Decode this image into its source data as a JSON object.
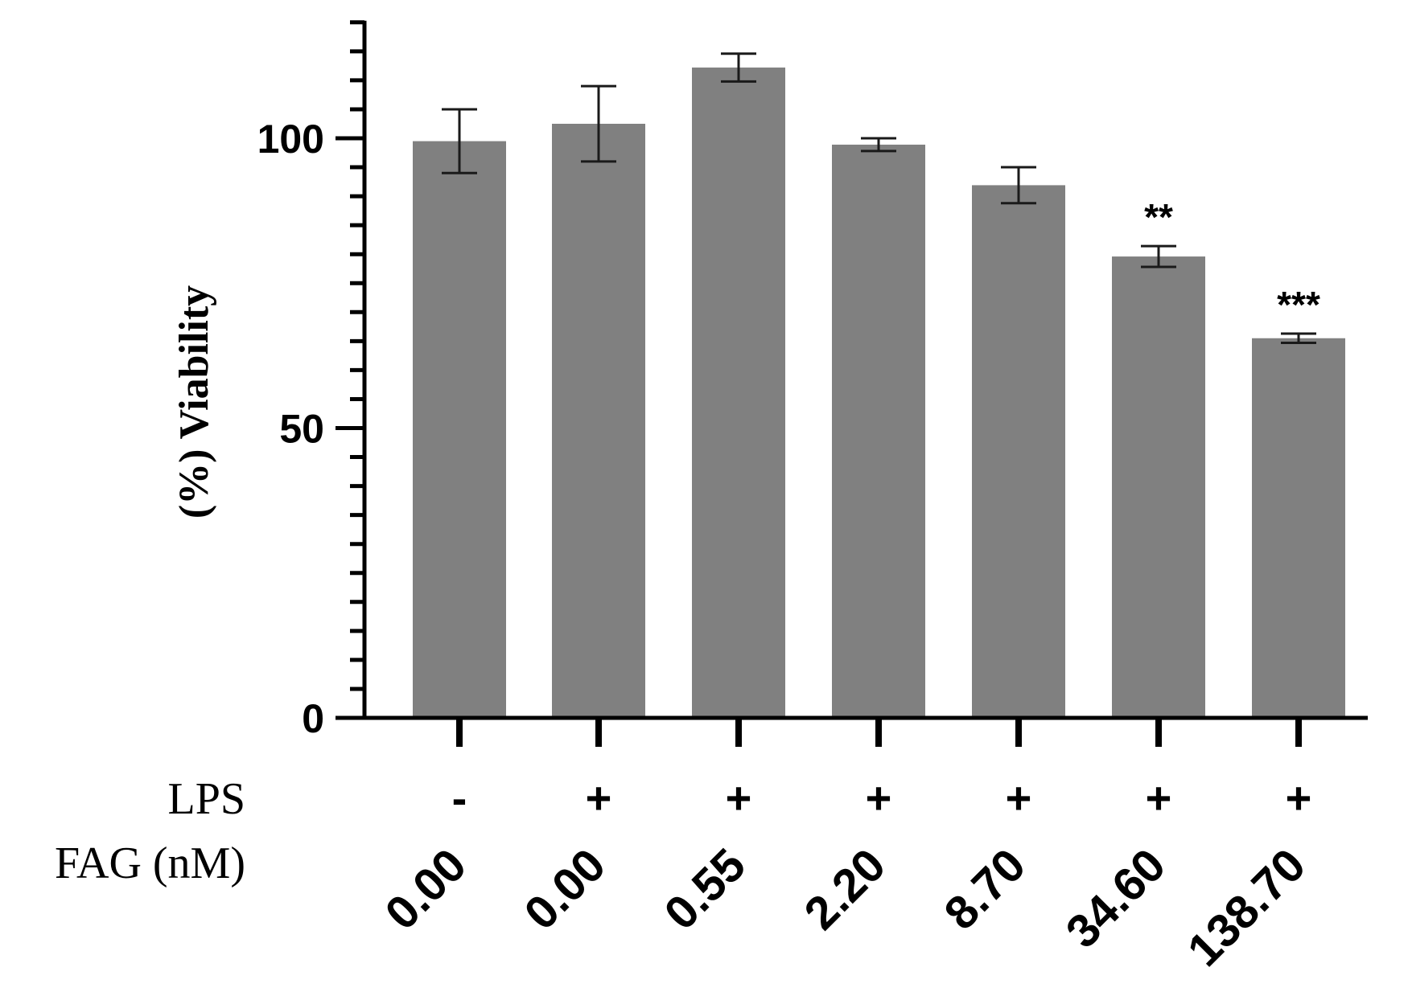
{
  "chart_data": {
    "type": "bar",
    "title": "",
    "xlabel": "",
    "ylabel": "(%) Viability",
    "ylim": [
      0,
      120
    ],
    "yticks": [
      0,
      50,
      100
    ],
    "minor_tick_step": 5,
    "grid": false,
    "legend": "none",
    "bar_color": "#808080",
    "error_color": "#1a1a1a",
    "axis_color": "#000000",
    "categories": [
      "0.00",
      "0.00",
      "0.55",
      "2.20",
      "8.70",
      "34.60",
      "138.70"
    ],
    "values": [
      99.5,
      102.5,
      112.2,
      98.9,
      91.9,
      79.6,
      65.5
    ],
    "errors": [
      5.5,
      6.5,
      2.4,
      1.1,
      3.1,
      1.8,
      0.8
    ],
    "significance": [
      "",
      "",
      "",
      "",
      "",
      "**",
      "***"
    ],
    "rows": [
      {
        "label": "LPS",
        "values": [
          "-",
          "+",
          "+",
          "+",
          "+",
          "+",
          "+"
        ]
      },
      {
        "label": "FAG (nM)",
        "values": [
          "0.00",
          "0.00",
          "0.55",
          "2.20",
          "8.70",
          "34.60",
          "138.70"
        ]
      }
    ]
  }
}
